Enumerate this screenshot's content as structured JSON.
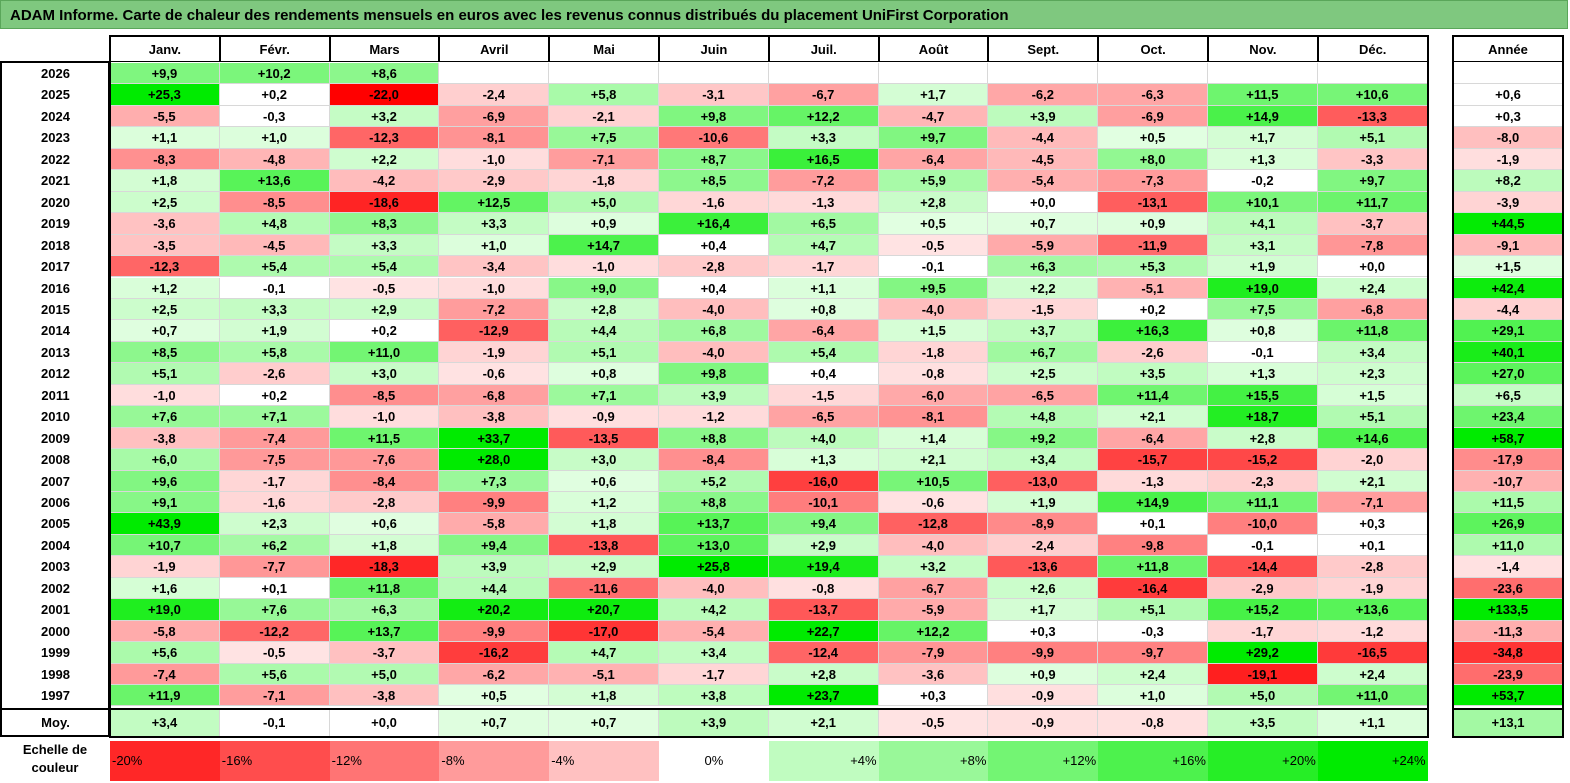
{
  "title": "ADAM Informe. Carte de chaleur des rendements mensuels en euros avec les revenus connus distribués du placement UniFirst Corporation",
  "months": [
    "Janv.",
    "Févr.",
    "Mars",
    "Avril",
    "Mai",
    "Juin",
    "Juil.",
    "Août",
    "Sept.",
    "Oct.",
    "Nov.",
    "Déc."
  ],
  "year_header": "Année",
  "avg_label": "Moy.",
  "scale_label": "Echelle de couleur",
  "colors": {
    "title_bg": "#7fc87f",
    "max_red": "#ff0000",
    "max_green": "#00ee00",
    "neutral": "#ffffff"
  },
  "chart_data": {
    "type": "heatmap",
    "title": "ADAM Informe. Carte de chaleur des rendements mensuels en euros avec les revenus connus distribués du placement UniFirst Corporation",
    "unit": "%",
    "rows": [
      {
        "year": "2026",
        "values": [
          "+9,9",
          "+10,2",
          "+8,6",
          "",
          "",
          "",
          "",
          "",
          "",
          "",
          "",
          ""
        ],
        "total": ""
      },
      {
        "year": "2025",
        "values": [
          "+25,3",
          "+0,2",
          "-22,0",
          "-2,4",
          "+5,8",
          "-3,1",
          "-6,7",
          "+1,7",
          "-6,2",
          "-6,3",
          "+11,5",
          "+10,6"
        ],
        "total": "+0,6"
      },
      {
        "year": "2024",
        "values": [
          "-5,5",
          "-0,3",
          "+3,2",
          "-6,9",
          "-2,1",
          "+9,8",
          "+12,2",
          "-4,7",
          "+3,9",
          "-6,9",
          "+14,9",
          "-13,3"
        ],
        "total": "+0,3"
      },
      {
        "year": "2023",
        "values": [
          "+1,1",
          "+1,0",
          "-12,3",
          "-8,1",
          "+7,5",
          "-10,6",
          "+3,3",
          "+9,7",
          "-4,4",
          "+0,5",
          "+1,7",
          "+5,1"
        ],
        "total": "-8,0"
      },
      {
        "year": "2022",
        "values": [
          "-8,3",
          "-4,8",
          "+2,2",
          "-1,0",
          "-7,1",
          "+8,7",
          "+16,5",
          "-6,4",
          "-4,5",
          "+8,0",
          "+1,3",
          "-3,3"
        ],
        "total": "-1,9"
      },
      {
        "year": "2021",
        "values": [
          "+1,8",
          "+13,6",
          "-4,2",
          "-2,9",
          "-1,8",
          "+8,5",
          "-7,2",
          "+5,9",
          "-5,4",
          "-7,3",
          "-0,2",
          "+9,7"
        ],
        "total": "+8,2"
      },
      {
        "year": "2020",
        "values": [
          "+2,5",
          "-8,5",
          "-18,6",
          "+12,5",
          "+5,0",
          "-1,6",
          "-1,3",
          "+2,8",
          "+0,0",
          "-13,1",
          "+10,1",
          "+11,7"
        ],
        "total": "-3,9"
      },
      {
        "year": "2019",
        "values": [
          "-3,6",
          "+4,8",
          "+8,3",
          "+3,3",
          "+0,9",
          "+16,4",
          "+6,5",
          "+0,5",
          "+0,7",
          "+0,9",
          "+4,1",
          "-3,7"
        ],
        "total": "+44,5"
      },
      {
        "year": "2018",
        "values": [
          "-3,5",
          "-4,5",
          "+3,3",
          "+1,0",
          "+14,7",
          "+0,4",
          "+4,7",
          "-0,5",
          "-5,9",
          "-11,9",
          "+3,1",
          "-7,8"
        ],
        "total": "-9,1"
      },
      {
        "year": "2017",
        "values": [
          "-12,3",
          "+5,4",
          "+5,4",
          "-3,4",
          "-1,0",
          "-2,8",
          "-1,7",
          "-0,1",
          "+6,3",
          "+5,3",
          "+1,9",
          "+0,0"
        ],
        "total": "+1,5"
      },
      {
        "year": "2016",
        "values": [
          "+1,2",
          "-0,1",
          "-0,5",
          "-1,0",
          "+9,0",
          "+0,4",
          "+1,1",
          "+9,5",
          "+2,2",
          "-5,1",
          "+19,0",
          "+2,4"
        ],
        "total": "+42,4"
      },
      {
        "year": "2015",
        "values": [
          "+2,5",
          "+3,3",
          "+2,9",
          "-7,2",
          "+2,8",
          "-4,0",
          "+0,8",
          "-4,0",
          "-1,5",
          "+0,2",
          "+7,5",
          "-6,8"
        ],
        "total": "-4,4"
      },
      {
        "year": "2014",
        "values": [
          "+0,7",
          "+1,9",
          "+0,2",
          "-12,9",
          "+4,4",
          "+6,8",
          "-6,4",
          "+1,5",
          "+3,7",
          "+16,3",
          "+0,8",
          "+11,8"
        ],
        "total": "+29,1"
      },
      {
        "year": "2013",
        "values": [
          "+8,5",
          "+5,8",
          "+11,0",
          "-1,9",
          "+5,1",
          "-4,0",
          "+5,4",
          "-1,8",
          "+6,7",
          "-2,6",
          "-0,1",
          "+3,4"
        ],
        "total": "+40,1"
      },
      {
        "year": "2012",
        "values": [
          "+5,1",
          "-2,6",
          "+3,0",
          "-0,6",
          "+0,8",
          "+9,8",
          "+0,4",
          "-0,8",
          "+2,5",
          "+3,5",
          "+1,3",
          "+2,3"
        ],
        "total": "+27,0"
      },
      {
        "year": "2011",
        "values": [
          "-1,0",
          "+0,2",
          "-8,5",
          "-6,8",
          "+7,1",
          "+3,9",
          "-1,5",
          "-6,0",
          "-6,5",
          "+11,4",
          "+15,5",
          "+1,5"
        ],
        "total": "+6,5"
      },
      {
        "year": "2010",
        "values": [
          "+7,6",
          "+7,1",
          "-1,0",
          "-3,8",
          "-0,9",
          "-1,2",
          "-6,5",
          "-8,1",
          "+4,8",
          "+2,1",
          "+18,7",
          "+5,1"
        ],
        "total": "+23,4"
      },
      {
        "year": "2009",
        "values": [
          "-3,8",
          "-7,4",
          "+11,5",
          "+33,7",
          "-13,5",
          "+8,8",
          "+4,0",
          "+1,4",
          "+9,2",
          "-6,4",
          "+2,8",
          "+14,6"
        ],
        "total": "+58,7"
      },
      {
        "year": "2008",
        "values": [
          "+6,0",
          "-7,5",
          "-7,6",
          "+28,0",
          "+3,0",
          "-8,4",
          "+1,3",
          "+2,1",
          "+3,4",
          "-15,7",
          "-15,2",
          "-2,0"
        ],
        "total": "-17,9"
      },
      {
        "year": "2007",
        "values": [
          "+9,6",
          "-1,7",
          "-8,4",
          "+7,3",
          "+0,6",
          "+5,2",
          "-16,0",
          "+10,5",
          "-13,0",
          "-1,3",
          "-2,3",
          "+2,1"
        ],
        "total": "-10,7"
      },
      {
        "year": "2006",
        "values": [
          "+9,1",
          "-1,6",
          "-2,8",
          "-9,9",
          "+1,2",
          "+8,8",
          "-10,1",
          "-0,6",
          "+1,9",
          "+14,9",
          "+11,1",
          "-7,1"
        ],
        "total": "+11,5"
      },
      {
        "year": "2005",
        "values": [
          "+43,9",
          "+2,3",
          "+0,6",
          "-5,8",
          "+1,8",
          "+13,7",
          "+9,4",
          "-12,8",
          "-8,9",
          "+0,1",
          "-10,0",
          "+0,3"
        ],
        "total": "+26,9"
      },
      {
        "year": "2004",
        "values": [
          "+10,7",
          "+6,2",
          "+1,8",
          "+9,4",
          "-13,8",
          "+13,0",
          "+2,9",
          "-4,0",
          "-2,4",
          "-9,8",
          "-0,1",
          "+0,1"
        ],
        "total": "+11,0"
      },
      {
        "year": "2003",
        "values": [
          "-1,9",
          "-7,7",
          "-18,3",
          "+3,9",
          "+2,9",
          "+25,8",
          "+19,4",
          "+3,2",
          "-13,6",
          "+11,8",
          "-14,4",
          "-2,8"
        ],
        "total": "-1,4"
      },
      {
        "year": "2002",
        "values": [
          "+1,6",
          "+0,1",
          "+11,8",
          "+4,4",
          "-11,6",
          "-4,0",
          "-0,8",
          "-6,7",
          "+2,6",
          "-16,4",
          "-2,9",
          "-1,9"
        ],
        "total": "-23,6"
      },
      {
        "year": "2001",
        "values": [
          "+19,0",
          "+7,6",
          "+6,3",
          "+20,2",
          "+20,7",
          "+4,2",
          "-13,7",
          "-5,9",
          "+1,7",
          "+5,1",
          "+15,2",
          "+13,6"
        ],
        "total": "+133,5"
      },
      {
        "year": "2000",
        "values": [
          "-5,8",
          "-12,2",
          "+13,7",
          "-9,9",
          "-17,0",
          "-5,4",
          "+22,7",
          "+12,2",
          "+0,3",
          "-0,3",
          "-1,7",
          "-1,2"
        ],
        "total": "-11,3"
      },
      {
        "year": "1999",
        "values": [
          "+5,6",
          "-0,5",
          "-3,7",
          "-16,2",
          "+4,7",
          "+3,4",
          "-12,4",
          "-7,9",
          "-9,9",
          "-9,7",
          "+29,2",
          "-16,5"
        ],
        "total": "-34,8"
      },
      {
        "year": "1998",
        "values": [
          "-7,4",
          "+5,6",
          "+5,0",
          "-6,2",
          "-5,1",
          "-1,7",
          "+2,8",
          "-3,6",
          "+0,9",
          "+2,4",
          "-19,1",
          "+2,4"
        ],
        "total": "-23,9"
      },
      {
        "year": "1997",
        "values": [
          "+11,9",
          "-7,1",
          "-3,8",
          "+0,5",
          "+1,8",
          "+3,8",
          "+23,7",
          "+0,3",
          "-0,9",
          "+1,0",
          "+5,0",
          "+11,0"
        ],
        "total": "+53,7"
      }
    ],
    "averages": [
      "+3,4",
      "-0,1",
      "+0,0",
      "+0,7",
      "+0,7",
      "+3,9",
      "+2,1",
      "-0,5",
      "-0,9",
      "-0,8",
      "+3,5",
      "+1,1"
    ],
    "average_total": "+13,1",
    "scale": [
      "-20%",
      "-16%",
      "-12%",
      "-8%",
      "-4%",
      "0%",
      "+4%",
      "+8%",
      "+12%",
      "+16%",
      "+20%",
      "+24%"
    ],
    "scale_values": [
      -20,
      -16,
      -12,
      -8,
      -4,
      0,
      4,
      8,
      12,
      16,
      20,
      24
    ]
  }
}
